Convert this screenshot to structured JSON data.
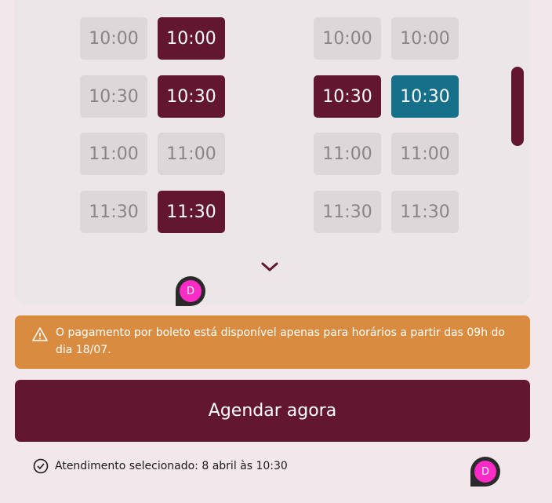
{
  "slots": {
    "col1": [
      "10:00",
      "10:30",
      "11:00",
      "11:30"
    ],
    "col2": [
      "10:00",
      "10:30",
      "11:00",
      "11:30"
    ],
    "col3": [
      "10:00",
      "10:30",
      "11:00",
      "11:30"
    ],
    "col4": [
      "10:00",
      "10:30",
      "11:00",
      "11:30"
    ]
  },
  "alert": {
    "icon": "warning-icon",
    "text": "O pagamento por boleto está disponível apenas para horários a partir das 09h do dia 18/07."
  },
  "button": {
    "label": "Agendar agora"
  },
  "status": {
    "icon": "check-circle-icon",
    "text": "Atendimento selecionado: 8 abril às 10:30"
  },
  "markers": [
    "D",
    "D"
  ],
  "colors": {
    "primary": "#63162f",
    "selected": "#17708a",
    "warning": "#d98c3f",
    "slot": "#dcd7d9"
  }
}
